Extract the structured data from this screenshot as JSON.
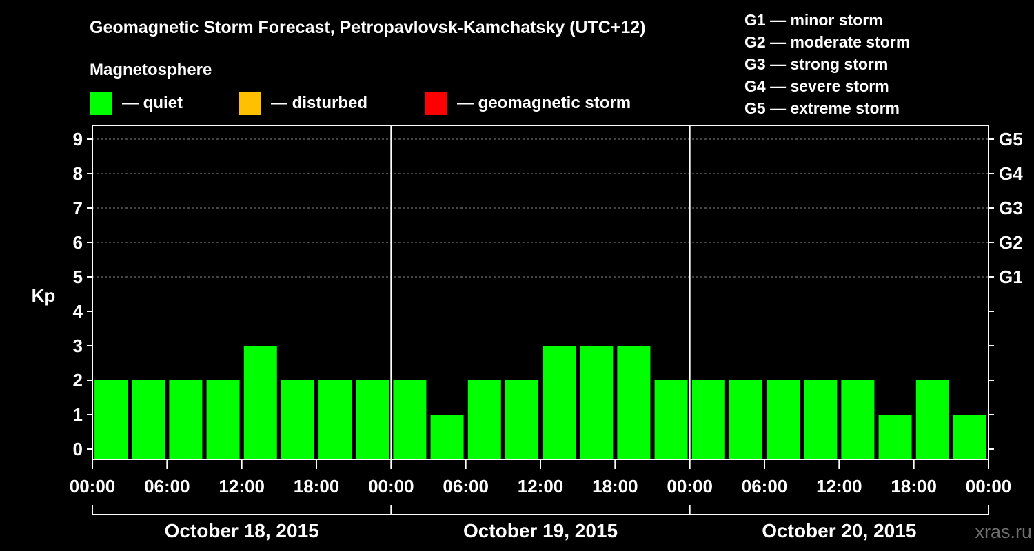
{
  "chart_data": {
    "type": "bar",
    "title": "Geomagnetic Storm Forecast, Petropavlovsk-Kamchatsky (UTC+12)",
    "legend_title": "Magnetosphere",
    "legend": [
      {
        "label": "— quiet",
        "color": "#00ff00"
      },
      {
        "label": "— disturbed",
        "color": "#ffc000"
      },
      {
        "label": "— geomagnetic storm",
        "color": "#ff0000"
      }
    ],
    "storm_scale": [
      "G1 — minor storm",
      "G2 — moderate storm",
      "G3 — strong storm",
      "G4 — severe storm",
      "G5 — extreme storm"
    ],
    "ylabel": "Kp",
    "ylim": [
      0,
      9
    ],
    "yticks": [
      "0",
      "1",
      "2",
      "3",
      "4",
      "5",
      "6",
      "7",
      "8",
      "9"
    ],
    "right_ticks": [
      {
        "kp": 5,
        "label": "G1"
      },
      {
        "kp": 6,
        "label": "G2"
      },
      {
        "kp": 7,
        "label": "G3"
      },
      {
        "kp": 8,
        "label": "G4"
      },
      {
        "kp": 9,
        "label": "G5"
      }
    ],
    "xticks": [
      "00:00",
      "06:00",
      "12:00",
      "18:00",
      "00:00",
      "06:00",
      "12:00",
      "18:00",
      "00:00",
      "06:00",
      "12:00",
      "18:00",
      "00:00"
    ],
    "days": [
      "October 18, 2015",
      "October 19, 2015",
      "October 20, 2015"
    ],
    "values": [
      2,
      2,
      2,
      2,
      3,
      2,
      2,
      2,
      2,
      1,
      2,
      2,
      3,
      3,
      3,
      2,
      2,
      2,
      2,
      2,
      2,
      1,
      2,
      1
    ],
    "bar_color": "#00ff00",
    "grid_levels": [
      5,
      6,
      7,
      8,
      9
    ]
  },
  "watermark": "xras.ru"
}
